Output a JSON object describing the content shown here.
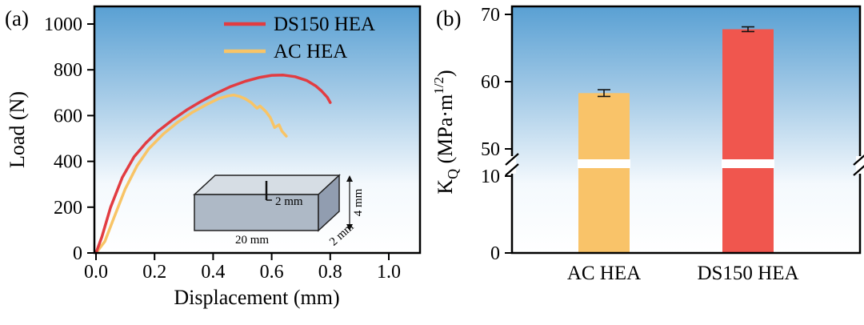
{
  "figure": {
    "panels": {
      "a": {
        "label": "(a)",
        "inset": {
          "notch_label": "2 mm",
          "height_label": "4 mm",
          "length_label": "20 mm",
          "width_label": "2 mm"
        }
      },
      "b": {
        "label": "(b)"
      }
    },
    "colors": {
      "ds150_red": "#e23c41",
      "ac_orange": "#f8c466",
      "bar_red": "#f0564e",
      "bar_orange": "#f9c369",
      "gradient_top_blue": "#59a0d3"
    }
  },
  "chart_data": [
    {
      "type": "line",
      "panel": "a",
      "title": "",
      "xlabel": "Displacement (mm)",
      "ylabel": "Load (N)",
      "xlim": [
        0,
        1.1
      ],
      "ylim": [
        0,
        1050
      ],
      "xticks": [
        0.0,
        0.2,
        0.4,
        0.6,
        0.8,
        1.0
      ],
      "yticks": [
        0,
        200,
        400,
        600,
        800,
        1000
      ],
      "legend_position": "top-right",
      "grid": false,
      "series": [
        {
          "name": "DS150 HEA",
          "color": "#e23c41",
          "x": [
            0,
            0.02,
            0.05,
            0.09,
            0.13,
            0.17,
            0.21,
            0.26,
            0.31,
            0.36,
            0.41,
            0.46,
            0.51,
            0.56,
            0.6,
            0.64,
            0.68,
            0.72,
            0.75,
            0.77,
            0.79,
            0.8
          ],
          "y": [
            0,
            70,
            200,
            330,
            420,
            480,
            530,
            580,
            625,
            663,
            697,
            727,
            750,
            767,
            776,
            777,
            770,
            753,
            730,
            708,
            680,
            657
          ]
        },
        {
          "name": "AC HEA",
          "color": "#f8c466",
          "x": [
            0,
            0.03,
            0.06,
            0.1,
            0.14,
            0.18,
            0.23,
            0.28,
            0.33,
            0.38,
            0.42,
            0.45,
            0.47,
            0.49,
            0.51,
            0.53,
            0.55,
            0.56,
            0.58,
            0.595,
            0.61,
            0.625,
            0.635,
            0.65
          ],
          "y": [
            0,
            50,
            150,
            280,
            380,
            455,
            520,
            572,
            615,
            650,
            675,
            686,
            690,
            684,
            673,
            657,
            632,
            642,
            618,
            592,
            548,
            560,
            532,
            510
          ]
        }
      ]
    },
    {
      "type": "bar",
      "panel": "b",
      "ylabel": "K_Q (MPa·m^1/2)",
      "ylabel_parts": {
        "prefix": "K",
        "sub": "Q",
        "mid": " (MPa·m",
        "sup": "1/2",
        "suffix": ")"
      },
      "categories": [
        "AC HEA",
        "DS150 HEA"
      ],
      "values": [
        58.3,
        67.8
      ],
      "errors": [
        0.5,
        0.35
      ],
      "bar_colors": [
        "#f9c369",
        "#f0564e"
      ],
      "axis_break": {
        "lower_max": 10,
        "upper_min": 50
      },
      "yticks_lower": [
        0,
        10
      ],
      "yticks_upper": [
        50,
        60,
        70
      ],
      "ylim": [
        0,
        70
      ],
      "grid": false
    }
  ]
}
